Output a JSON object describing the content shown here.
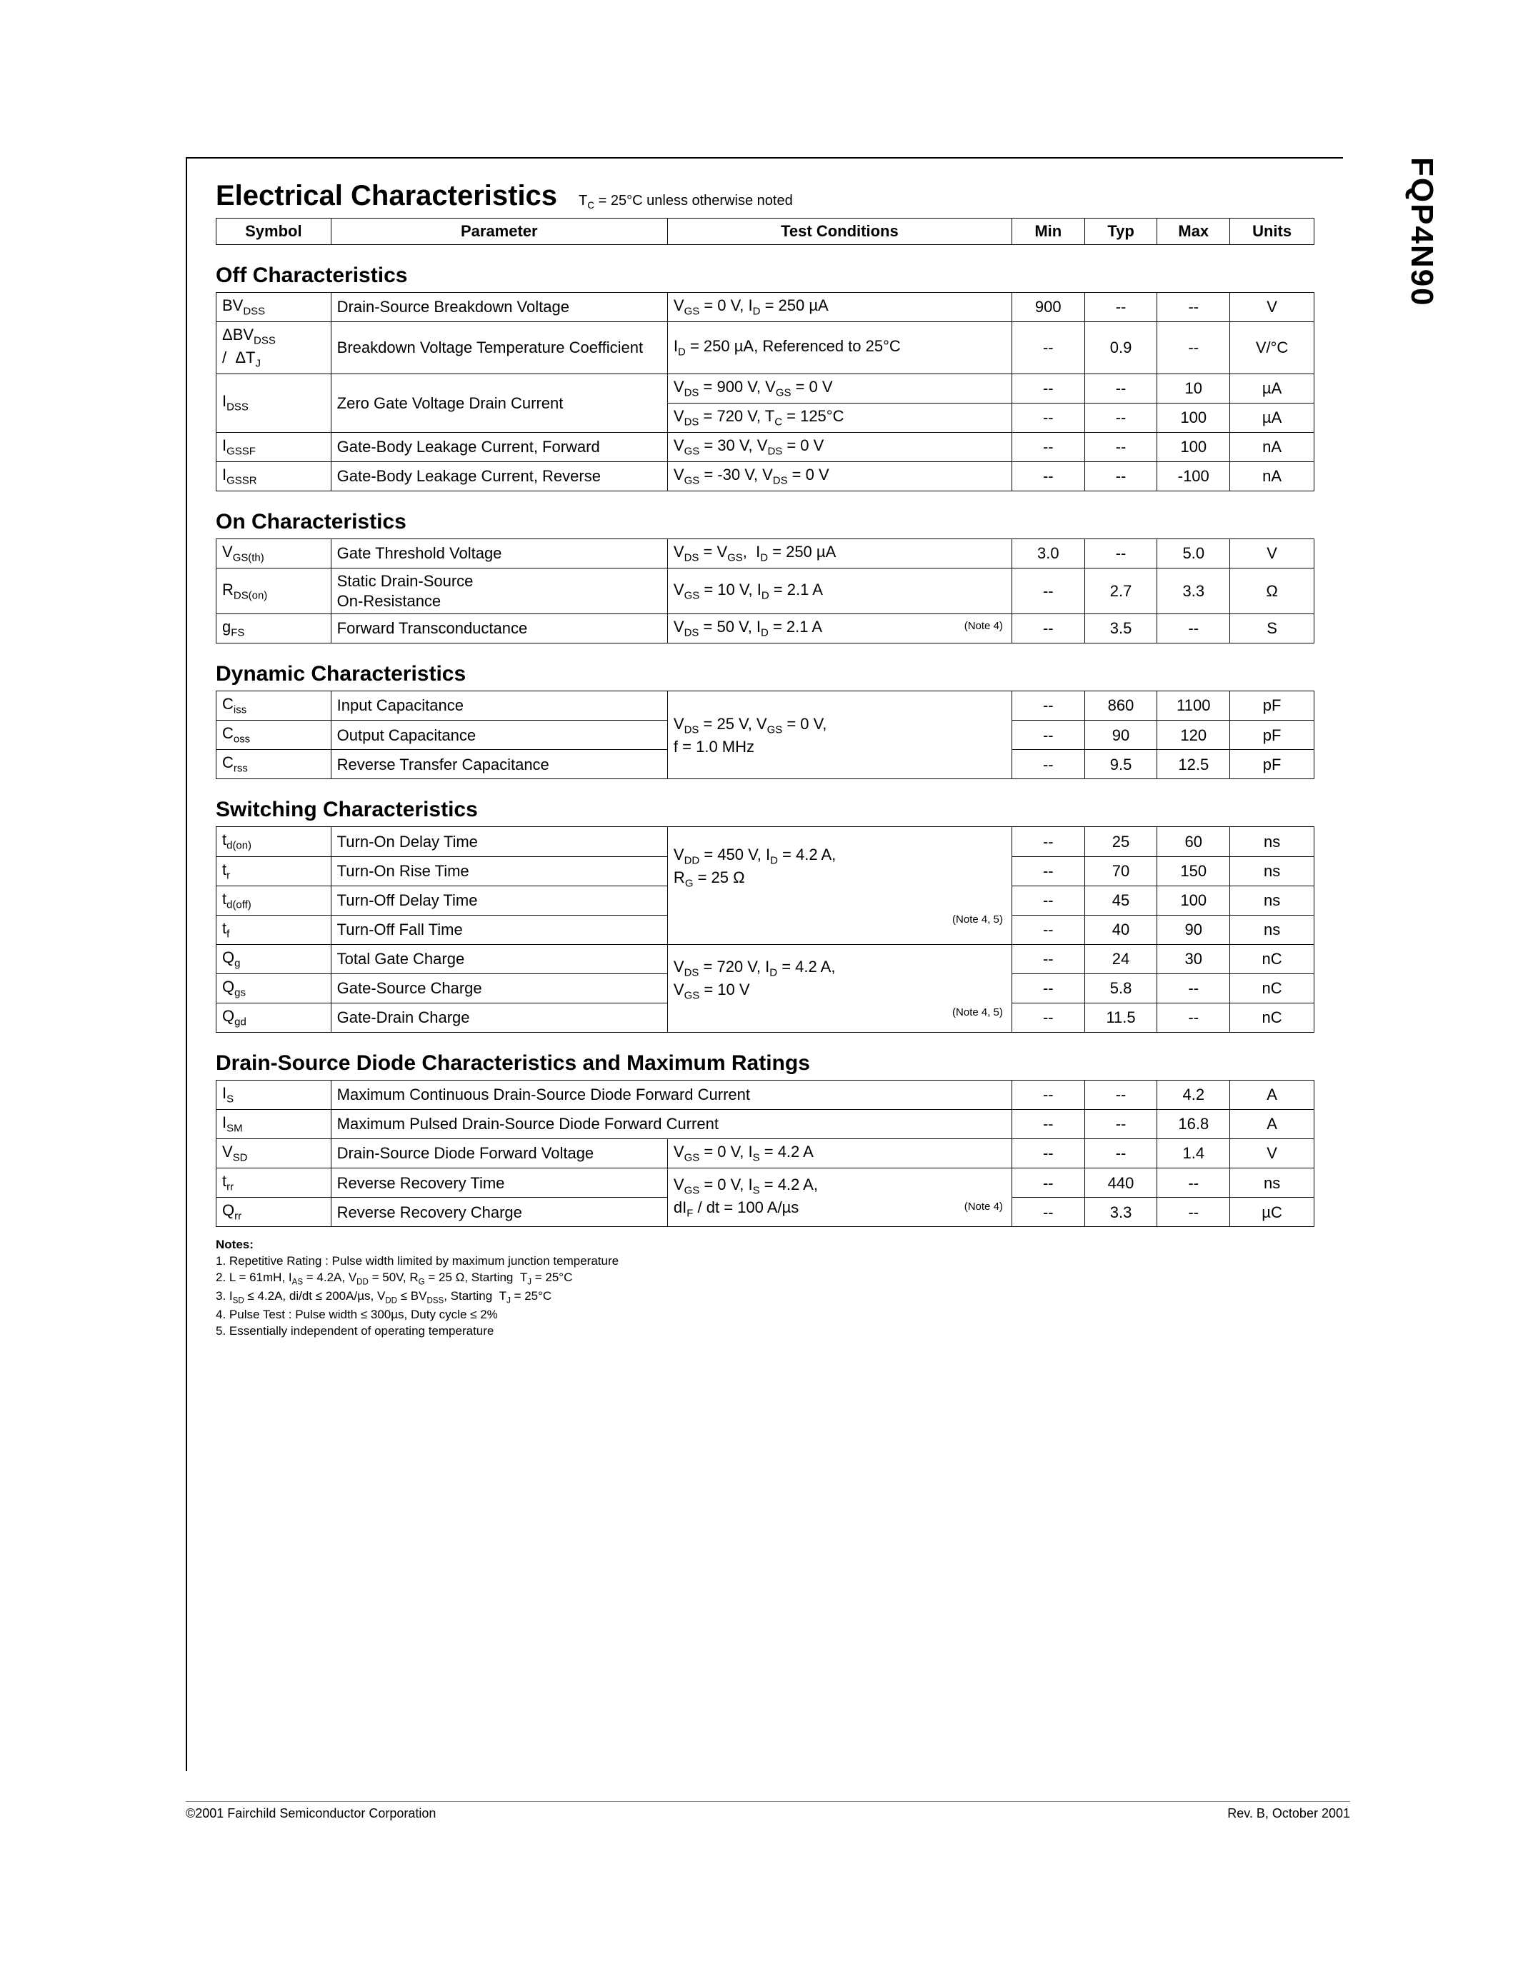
{
  "part_number": "FQP4N90",
  "page": {
    "title": "Electrical Characteristics",
    "condition": "T_C = 25°C unless otherwise noted",
    "headers": {
      "symbol": "Symbol",
      "parameter": "Parameter",
      "conditions": "Test Conditions",
      "min": "Min",
      "typ": "Typ",
      "max": "Max",
      "units": "Units"
    }
  },
  "colors": {
    "text": "#000000",
    "border": "#000000",
    "background": "#ffffff"
  },
  "fonts": {
    "title_pt": 40,
    "section_pt": 30,
    "body_pt": 22,
    "notes_pt": 17,
    "footer_pt": 18,
    "family": "Arial"
  },
  "sections": {
    "off": {
      "title": "Off Characteristics",
      "rows": [
        {
          "sym": "BV<sub>DSS</sub>",
          "param": "Drain-Source Breakdown Voltage",
          "cond": "V<sub>GS</sub> = 0 V, I<sub>D</sub> = 250 µA",
          "min": "900",
          "typ": "--",
          "max": "--",
          "units": "V"
        },
        {
          "sym": "ΔBV<sub>DSS</sub><br>/ &nbsp;ΔT<sub>J</sub>",
          "param": "Breakdown Voltage Temperature Coefficient",
          "cond": "I<sub>D</sub> = 250 µA, Referenced to 25°C",
          "min": "--",
          "typ": "0.9",
          "max": "--",
          "units": "V/°C"
        },
        {
          "sym": "I<sub>DSS</sub>",
          "param": "Zero Gate Voltage Drain Current",
          "cond": "V<sub>DS</sub> = 900 V, V<sub>GS</sub> = 0 V",
          "min": "--",
          "typ": "--",
          "max": "10",
          "units": "µA",
          "rowspan_sym": 2,
          "rowspan_param": 2
        },
        {
          "cond": "V<sub>DS</sub> = 720 V, T<sub>C</sub> = 125°C",
          "min": "--",
          "typ": "--",
          "max": "100",
          "units": "µA",
          "continued": true
        },
        {
          "sym": "I<sub>GSSF</sub>",
          "param": "Gate-Body Leakage Current, Forward",
          "cond": "V<sub>GS</sub> = 30 V, V<sub>DS</sub> = 0 V",
          "min": "--",
          "typ": "--",
          "max": "100",
          "units": "nA"
        },
        {
          "sym": "I<sub>GSSR</sub>",
          "param": "Gate-Body Leakage Current, Reverse",
          "cond": "V<sub>GS</sub> = -30 V, V<sub>DS</sub> = 0 V",
          "min": "--",
          "typ": "--",
          "max": "-100",
          "units": "nA"
        }
      ]
    },
    "on": {
      "title": "On Characteristics",
      "rows": [
        {
          "sym": "V<sub>GS(th)</sub>",
          "param": "Gate Threshold Voltage",
          "cond": "V<sub>DS</sub> = V<sub>GS</sub>, &nbsp;I<sub>D</sub> = 250 µA",
          "min": "3.0",
          "typ": "--",
          "max": "5.0",
          "units": "V"
        },
        {
          "sym": "R<sub>DS(on)</sub>",
          "param": "Static Drain-Source<br>On-Resistance",
          "cond": "V<sub>GS</sub> = 10 V, I<sub>D</sub> = 2.1 A",
          "min": "--",
          "typ": "2.7",
          "max": "3.3",
          "units": "Ω"
        },
        {
          "sym": "g<sub>FS</sub>",
          "param": "Forward Transconductance",
          "cond": "V<sub>DS</sub> = 50 V, I<sub>D</sub> = 2.1 A <span class=\"note-ref\">(Note 4)</span>",
          "min": "--",
          "typ": "3.5",
          "max": "--",
          "units": "S"
        }
      ]
    },
    "dyn": {
      "title": "Dynamic Characteristics",
      "cond_shared": "V<sub>DS</sub> = 25 V, V<sub>GS</sub> = 0 V,<br>f = 1.0 MHz",
      "rows": [
        {
          "sym": "C<sub>iss</sub>",
          "param": "Input Capacitance",
          "min": "--",
          "typ": "860",
          "max": "1100",
          "units": "pF"
        },
        {
          "sym": "C<sub>oss</sub>",
          "param": "Output Capacitance",
          "min": "--",
          "typ": "90",
          "max": "120",
          "units": "pF"
        },
        {
          "sym": "C<sub>rss</sub>",
          "param": "Reverse Transfer Capacitance",
          "min": "--",
          "typ": "9.5",
          "max": "12.5",
          "units": "pF"
        }
      ]
    },
    "sw": {
      "title": "Switching Characteristics",
      "cond_shared_1": "V<sub>DD</sub> = 450 V, I<sub>D</sub> = 4.2 A,<br>R<sub>G</sub> = 25 Ω<br><br><span class=\"note-ref\">(Note 4, 5)</span>",
      "cond_shared_2": "V<sub>DS</sub> = 720 V, I<sub>D</sub> = 4.2 A,<br>V<sub>GS</sub> = 10 V<br><span class=\"note-ref\">(Note 4, 5)</span>",
      "rows1": [
        {
          "sym": "t<sub>d(on)</sub>",
          "param": "Turn-On Delay Time",
          "min": "--",
          "typ": "25",
          "max": "60",
          "units": "ns"
        },
        {
          "sym": "t<sub>r</sub>",
          "param": "Turn-On Rise Time",
          "min": "--",
          "typ": "70",
          "max": "150",
          "units": "ns"
        },
        {
          "sym": "t<sub>d(off)</sub>",
          "param": "Turn-Off Delay Time",
          "min": "--",
          "typ": "45",
          "max": "100",
          "units": "ns"
        },
        {
          "sym": "t<sub>f</sub>",
          "param": "Turn-Off Fall Time",
          "min": "--",
          "typ": "40",
          "max": "90",
          "units": "ns"
        }
      ],
      "rows2": [
        {
          "sym": "Q<sub>g</sub>",
          "param": "Total Gate Charge",
          "min": "--",
          "typ": "24",
          "max": "30",
          "units": "nC"
        },
        {
          "sym": "Q<sub>gs</sub>",
          "param": "Gate-Source Charge",
          "min": "--",
          "typ": "5.8",
          "max": "--",
          "units": "nC"
        },
        {
          "sym": "Q<sub>gd</sub>",
          "param": "Gate-Drain Charge",
          "min": "--",
          "typ": "11.5",
          "max": "--",
          "units": "nC"
        }
      ]
    },
    "diode": {
      "title": "Drain-Source Diode Characteristics and Maximum Ratings",
      "rows": [
        {
          "sym": "I<sub>S</sub>",
          "param_full": "Maximum Continuous Drain-Source Diode Forward Current",
          "min": "--",
          "typ": "--",
          "max": "4.2",
          "units": "A"
        },
        {
          "sym": "I<sub>SM</sub>",
          "param_full": "Maximum Pulsed Drain-Source Diode Forward Current",
          "min": "--",
          "typ": "--",
          "max": "16.8",
          "units": "A"
        },
        {
          "sym": "V<sub>SD</sub>",
          "param": "Drain-Source Diode Forward Voltage",
          "cond": "V<sub>GS</sub> = 0 V, I<sub>S</sub> = 4.2 A",
          "min": "--",
          "typ": "--",
          "max": "1.4",
          "units": "V"
        },
        {
          "sym": "t<sub>rr</sub>",
          "param": "Reverse Recovery Time",
          "cond": "V<sub>GS</sub> = 0 V, I<sub>S</sub> = 4.2 A,",
          "min": "--",
          "typ": "440",
          "max": "--",
          "units": "ns"
        },
        {
          "sym": "Q<sub>rr</sub>",
          "param": "Reverse Recovery Charge",
          "cond": "dI<sub>F</sub> / dt = 100 A/µs <span class=\"note-ref\">(Note 4)</span>",
          "min": "--",
          "typ": "3.3",
          "max": "--",
          "units": "µC"
        }
      ]
    }
  },
  "notes": {
    "heading": "Notes:",
    "items": [
      "1. Repetitive Rating : Pulse width limited by maximum junction temperature",
      "2. L = 61mH, I_AS = 4.2A, V_DD = 50V, R_G = 25 Ω, Starting  T_J = 25°C",
      "3. I_SD ≤ 4.2A, di/dt ≤ 200A/µs, V_DD ≤ BV_DSS, Starting  T_J = 25°C",
      "4. Pulse Test : Pulse width ≤ 300µs, Duty cycle ≤ 2%",
      "5. Essentially independent of operating temperature"
    ]
  },
  "footer": {
    "left": "©2001 Fairchild Semiconductor Corporation",
    "right": "Rev. B, October 2001"
  }
}
